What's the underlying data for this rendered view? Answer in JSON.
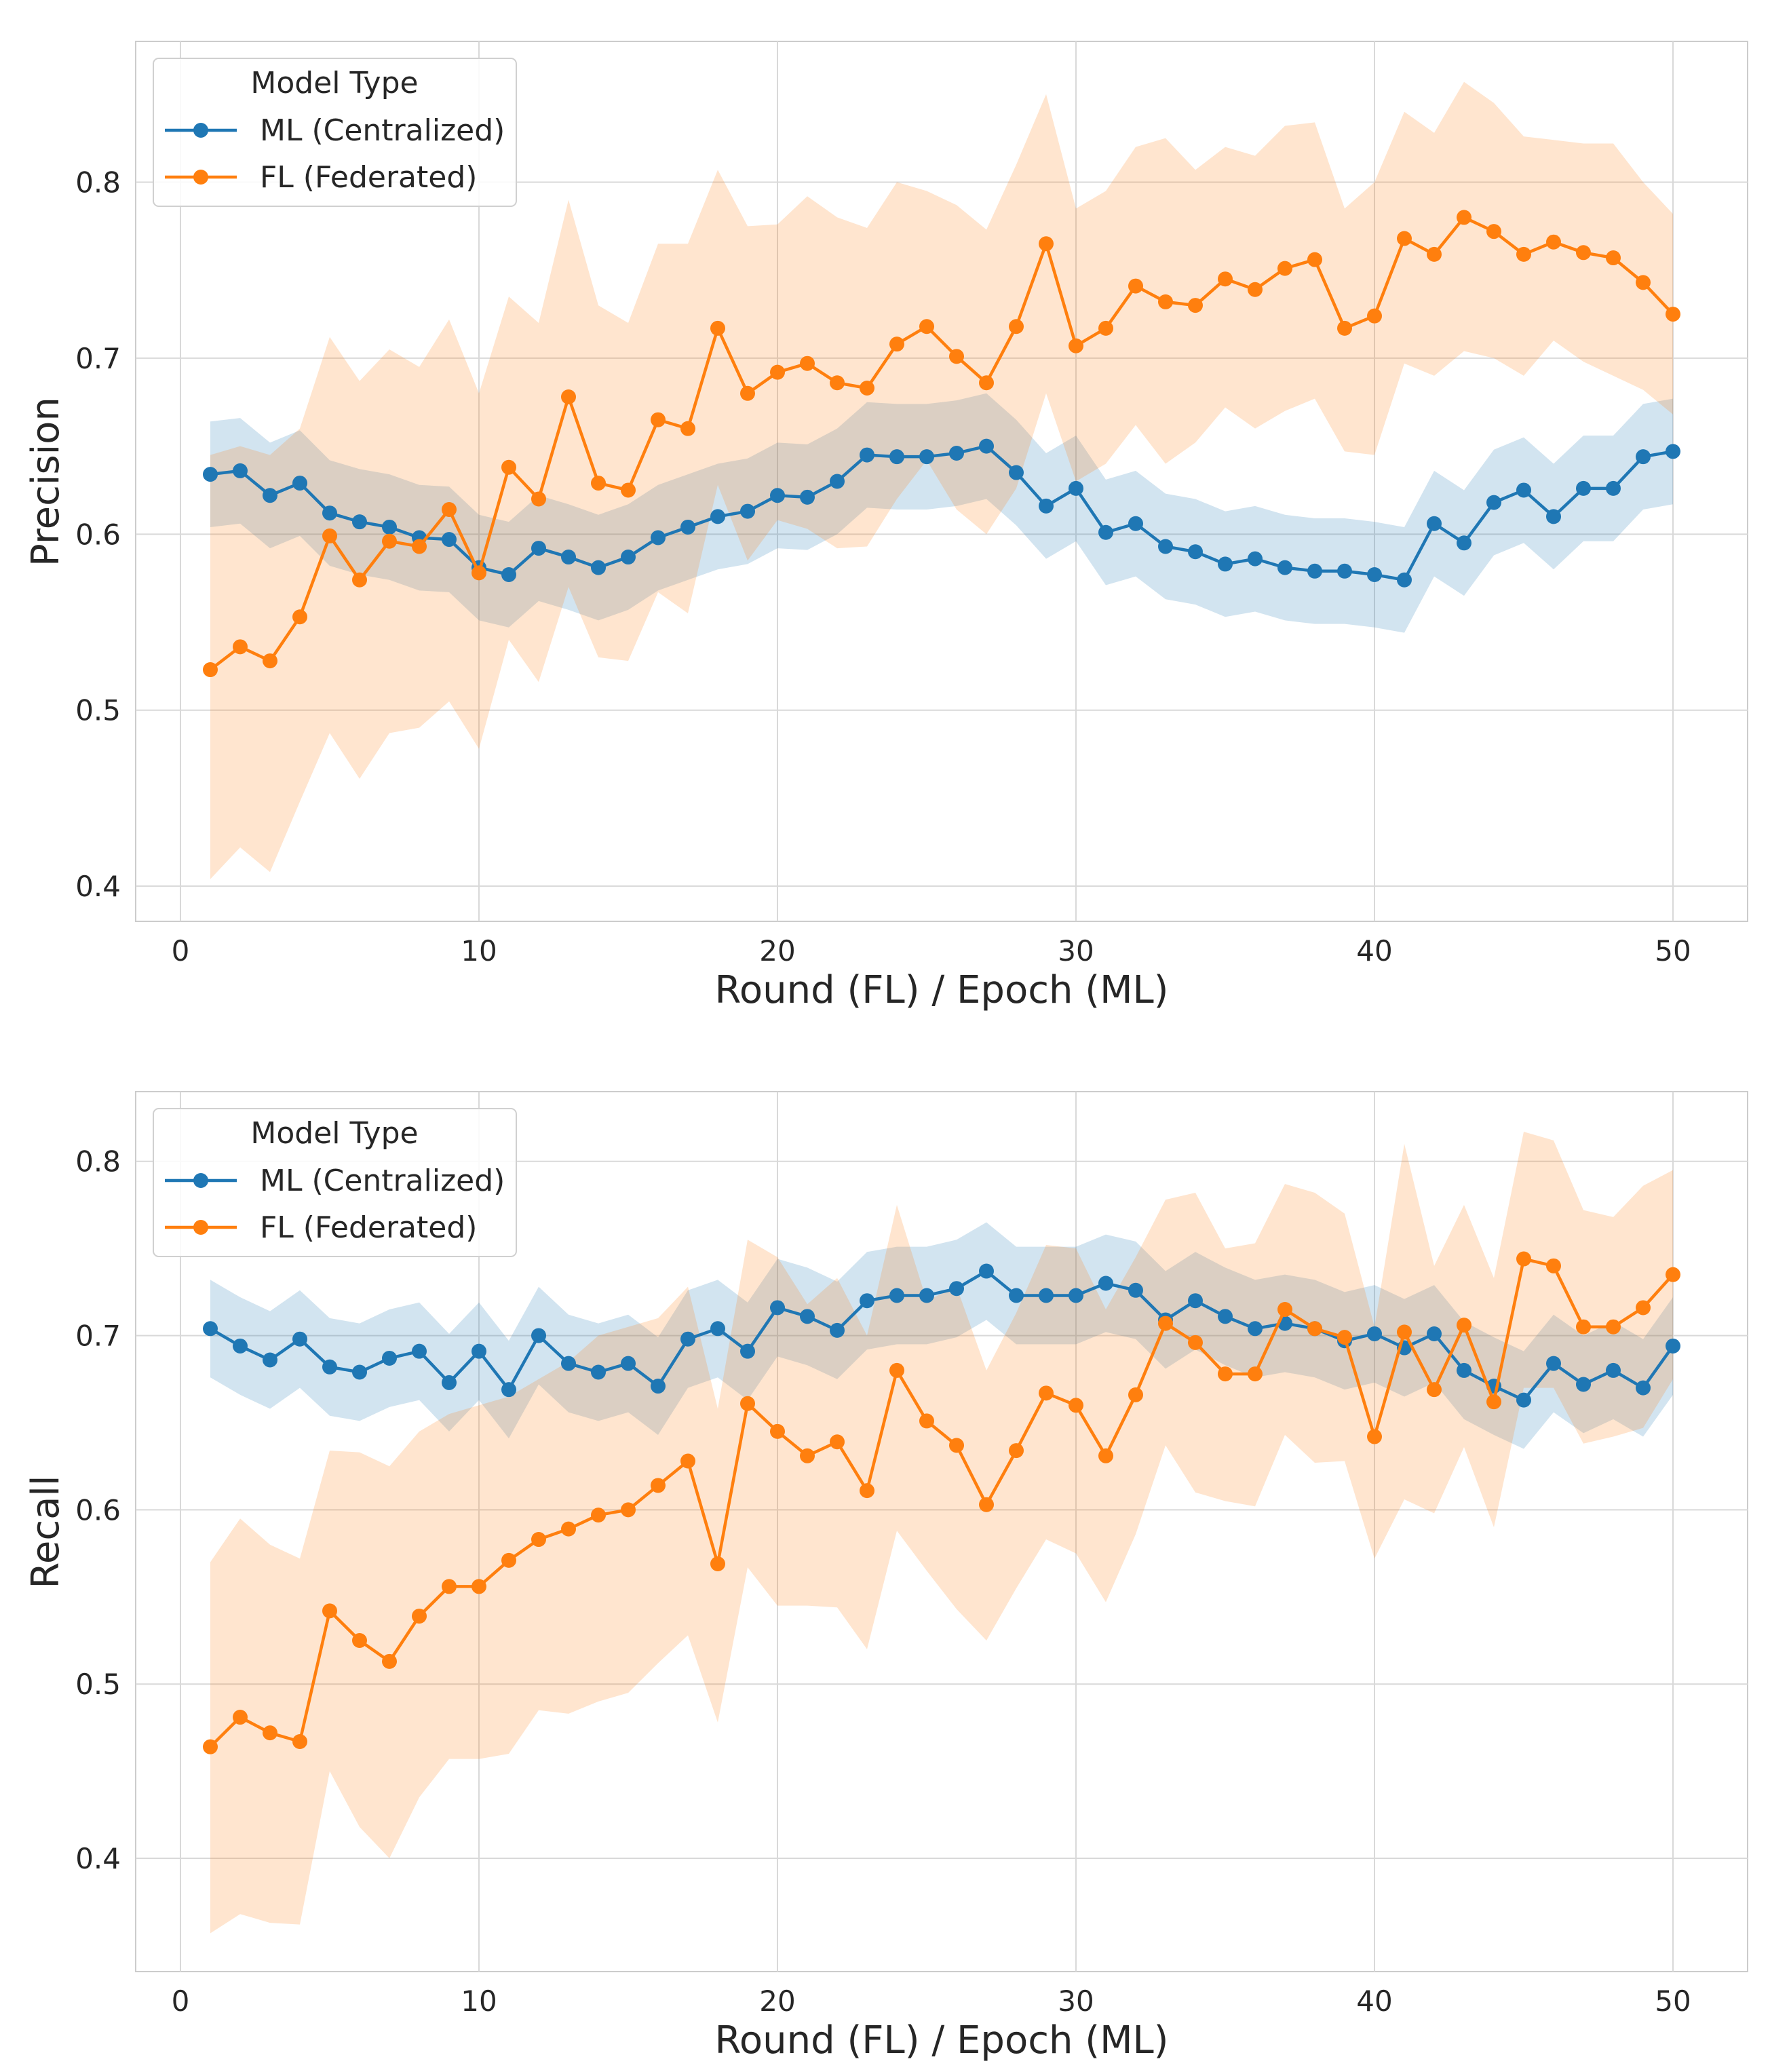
{
  "colors": {
    "ml": "#1f77b4",
    "fl": "#ff7f0e",
    "grid": "#d9d9d9"
  },
  "chart_data": [
    {
      "type": "line",
      "ylabel": "Precision",
      "xlabel": "Round (FL) / Epoch (ML)",
      "xlim": [
        -1.5,
        52.5
      ],
      "ylim": [
        0.38,
        0.88
      ],
      "xticks": [
        "0",
        "10",
        "20",
        "30",
        "40",
        "50"
      ],
      "yticks": [
        "0.4",
        "0.5",
        "0.6",
        "0.7",
        "0.8"
      ],
      "grid": true,
      "legend": {
        "title": "Model Type",
        "placement": "top-left",
        "entries": [
          "ML (Centralized)",
          "FL (Federated)"
        ]
      },
      "series": [
        {
          "name": "ML (Centralized)",
          "color": "#1f77b4",
          "values": [
            0.634,
            0.636,
            0.622,
            0.629,
            0.612,
            0.607,
            0.604,
            0.598,
            0.597,
            0.581,
            0.577,
            0.592,
            0.587,
            0.581,
            0.587,
            0.598,
            0.604,
            0.61,
            0.613,
            0.622,
            0.621,
            0.63,
            0.645,
            0.644,
            0.644,
            0.646,
            0.65,
            0.635,
            0.616,
            0.626,
            0.601,
            0.606,
            0.593,
            0.59,
            0.583,
            0.586,
            0.581,
            0.579,
            0.579,
            0.577,
            0.574,
            0.606,
            0.595,
            0.618,
            0.625,
            0.61,
            0.626,
            0.626,
            0.644,
            0.647
          ],
          "ci_halfwidth": 0.03
        },
        {
          "name": "FL (Federated)",
          "color": "#ff7f0e",
          "values": [
            0.523,
            0.536,
            0.528,
            0.553,
            0.599,
            0.574,
            0.596,
            0.593,
            0.614,
            0.578,
            0.638,
            0.62,
            0.678,
            0.629,
            0.625,
            0.665,
            0.66,
            0.717,
            0.68,
            0.692,
            0.697,
            0.686,
            0.683,
            0.708,
            0.718,
            0.701,
            0.686,
            0.718,
            0.765,
            0.707,
            0.717,
            0.741,
            0.732,
            0.73,
            0.745,
            0.739,
            0.751,
            0.756,
            0.717,
            0.724,
            0.768,
            0.759,
            0.78,
            0.772,
            0.759,
            0.766,
            0.76,
            0.757,
            0.743,
            0.725
          ],
          "upper": [
            0.645,
            0.65,
            0.645,
            0.66,
            0.712,
            0.687,
            0.705,
            0.695,
            0.722,
            0.68,
            0.735,
            0.72,
            0.79,
            0.73,
            0.72,
            0.765,
            0.765,
            0.807,
            0.775,
            0.776,
            0.792,
            0.78,
            0.774,
            0.8,
            0.795,
            0.787,
            0.773,
            0.81,
            0.85,
            0.785,
            0.795,
            0.82,
            0.825,
            0.807,
            0.82,
            0.815,
            0.832,
            0.834,
            0.785,
            0.8,
            0.84,
            0.828,
            0.857,
            0.845,
            0.826,
            0.824,
            0.822,
            0.822,
            0.8,
            0.782
          ],
          "lower": [
            0.404,
            0.422,
            0.408,
            0.448,
            0.487,
            0.461,
            0.487,
            0.49,
            0.505,
            0.478,
            0.54,
            0.516,
            0.57,
            0.53,
            0.528,
            0.567,
            0.555,
            0.628,
            0.585,
            0.608,
            0.603,
            0.592,
            0.593,
            0.62,
            0.642,
            0.614,
            0.6,
            0.626,
            0.68,
            0.63,
            0.64,
            0.662,
            0.64,
            0.652,
            0.672,
            0.66,
            0.67,
            0.677,
            0.647,
            0.645,
            0.697,
            0.69,
            0.704,
            0.7,
            0.69,
            0.71,
            0.698,
            0.69,
            0.682,
            0.668
          ]
        }
      ]
    },
    {
      "type": "line",
      "ylabel": "Recall",
      "xlabel": "Round (FL) / Epoch (ML)",
      "xlim": [
        -1.5,
        52.5
      ],
      "ylim": [
        0.335,
        0.84
      ],
      "xticks": [
        "0",
        "10",
        "20",
        "30",
        "40",
        "50"
      ],
      "yticks": [
        "0.4",
        "0.5",
        "0.6",
        "0.7",
        "0.8"
      ],
      "grid": true,
      "legend": {
        "title": "Model Type",
        "placement": "top-left",
        "entries": [
          "ML (Centralized)",
          "FL (Federated)"
        ]
      },
      "series": [
        {
          "name": "ML (Centralized)",
          "color": "#1f77b4",
          "values": [
            0.704,
            0.694,
            0.686,
            0.698,
            0.682,
            0.679,
            0.687,
            0.691,
            0.673,
            0.691,
            0.669,
            0.7,
            0.684,
            0.679,
            0.684,
            0.671,
            0.698,
            0.704,
            0.691,
            0.716,
            0.711,
            0.703,
            0.72,
            0.723,
            0.723,
            0.727,
            0.737,
            0.723,
            0.723,
            0.723,
            0.73,
            0.726,
            0.709,
            0.72,
            0.711,
            0.704,
            0.707,
            0.704,
            0.697,
            0.701,
            0.693,
            0.701,
            0.68,
            0.671,
            0.663,
            0.684,
            0.672,
            0.68,
            0.67,
            0.694
          ],
          "ci_halfwidth": 0.028
        },
        {
          "name": "FL (Federated)",
          "color": "#ff7f0e",
          "values": [
            0.464,
            0.481,
            0.472,
            0.467,
            0.542,
            0.525,
            0.513,
            0.539,
            0.556,
            0.556,
            0.571,
            0.583,
            0.589,
            0.597,
            0.6,
            0.614,
            0.628,
            0.569,
            0.661,
            0.645,
            0.631,
            0.639,
            0.611,
            0.68,
            0.651,
            0.637,
            0.603,
            0.634,
            0.667,
            0.66,
            0.631,
            0.666,
            0.707,
            0.696,
            0.678,
            0.678,
            0.715,
            0.704,
            0.699,
            0.642,
            0.702,
            0.669,
            0.706,
            0.662,
            0.744,
            0.74,
            0.705,
            0.705,
            0.716,
            0.735
          ],
          "upper": [
            0.57,
            0.595,
            0.58,
            0.572,
            0.634,
            0.633,
            0.625,
            0.645,
            0.655,
            0.66,
            0.665,
            0.675,
            0.685,
            0.7,
            0.705,
            0.71,
            0.728,
            0.658,
            0.755,
            0.745,
            0.718,
            0.733,
            0.7,
            0.775,
            0.72,
            0.728,
            0.68,
            0.713,
            0.752,
            0.75,
            0.715,
            0.745,
            0.778,
            0.782,
            0.75,
            0.753,
            0.787,
            0.782,
            0.77,
            0.705,
            0.81,
            0.74,
            0.775,
            0.733,
            0.817,
            0.812,
            0.772,
            0.768,
            0.786,
            0.795
          ],
          "lower": [
            0.357,
            0.368,
            0.363,
            0.362,
            0.45,
            0.418,
            0.4,
            0.435,
            0.457,
            0.457,
            0.46,
            0.485,
            0.483,
            0.49,
            0.495,
            0.512,
            0.528,
            0.478,
            0.567,
            0.545,
            0.545,
            0.544,
            0.52,
            0.588,
            0.565,
            0.543,
            0.525,
            0.555,
            0.583,
            0.575,
            0.547,
            0.586,
            0.637,
            0.61,
            0.605,
            0.602,
            0.643,
            0.627,
            0.628,
            0.572,
            0.606,
            0.598,
            0.636,
            0.59,
            0.67,
            0.67,
            0.638,
            0.642,
            0.647,
            0.675
          ]
        }
      ]
    }
  ]
}
